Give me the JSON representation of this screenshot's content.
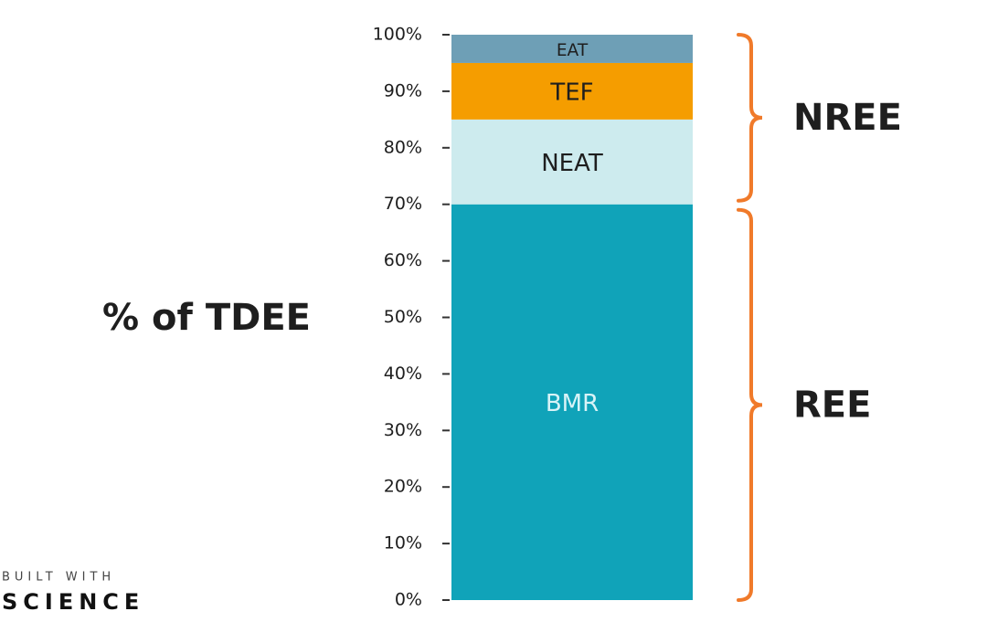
{
  "chart_data": {
    "type": "stacked_bar",
    "ylabel": "% of TDEE",
    "categories": [
      null
    ],
    "series": [
      {
        "name": "BMR",
        "color": "#10a3b9",
        "text_color": "#d8f3f7",
        "values": [
          70
        ]
      },
      {
        "name": "NEAT",
        "color": "#cdebee",
        "text_color": "#1e1e1e",
        "values": [
          15
        ]
      },
      {
        "name": "TEF",
        "color": "#f59d00",
        "text_color": "#1e1e1e",
        "values": [
          10
        ]
      },
      {
        "name": "EAT",
        "color": "#6e9fb6",
        "text_color": "#1e1e1e",
        "values": [
          5
        ]
      }
    ],
    "ylim": [
      0,
      100
    ],
    "yticks": [
      {
        "value": 0,
        "label": "0%"
      },
      {
        "value": 10,
        "label": "10%"
      },
      {
        "value": 20,
        "label": "20%"
      },
      {
        "value": 30,
        "label": "30%"
      },
      {
        "value": 40,
        "label": "40%"
      },
      {
        "value": 50,
        "label": "50%"
      },
      {
        "value": 60,
        "label": "60%"
      },
      {
        "value": 70,
        "label": "70%"
      },
      {
        "value": 80,
        "label": "80%"
      },
      {
        "value": 90,
        "label": "90%"
      },
      {
        "value": 100,
        "label": "100%"
      }
    ],
    "annotations": [
      "NREE",
      "REE"
    ],
    "bracket_color": "#f07a2a"
  },
  "logo": {
    "top": "BUILT WITH",
    "bottom": "SCIENCE"
  }
}
